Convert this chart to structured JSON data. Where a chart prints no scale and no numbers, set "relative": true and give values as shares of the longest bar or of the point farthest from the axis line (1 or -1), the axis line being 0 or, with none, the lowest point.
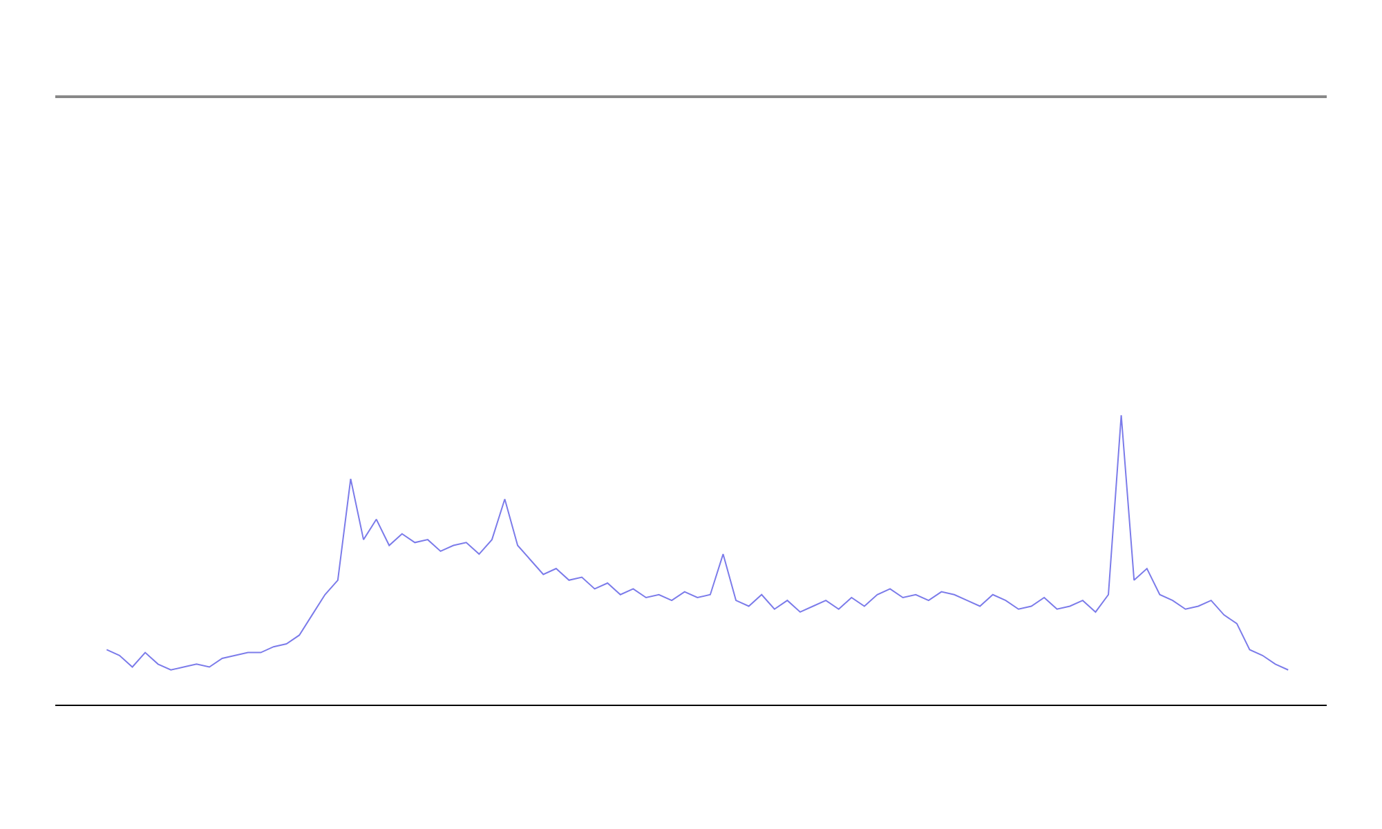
{
  "chart_data": {
    "type": "line",
    "relative": true,
    "legend": false,
    "marker": "none",
    "line_style": "solid",
    "categories": [
      null,
      null,
      null,
      null,
      null,
      null,
      null,
      null,
      null,
      null,
      null,
      null,
      null,
      null,
      null,
      null,
      null,
      null,
      null,
      null,
      null,
      null,
      null,
      null,
      null,
      null,
      null,
      null,
      null,
      null,
      null,
      null,
      null,
      null,
      null,
      null,
      null,
      null,
      null,
      null,
      null,
      null,
      null,
      null,
      null,
      null,
      null,
      null,
      null,
      null,
      null,
      null,
      null,
      null,
      null,
      null,
      null,
      null,
      null,
      null,
      null,
      null,
      null,
      null,
      null,
      null,
      null,
      null,
      null,
      null,
      null,
      null,
      null,
      null,
      null,
      null,
      null,
      null,
      null,
      null,
      null,
      null,
      null,
      null,
      null,
      null,
      null,
      null,
      null,
      null,
      null,
      null,
      null
    ],
    "series": [
      {
        "color": "#7b7bea",
        "values": [
          0.19,
          0.17,
          0.13,
          0.18,
          0.14,
          0.12,
          0.13,
          0.14,
          0.13,
          0.16,
          0.17,
          0.18,
          0.18,
          0.2,
          0.21,
          0.24,
          0.31,
          0.38,
          0.43,
          0.78,
          0.57,
          0.64,
          0.55,
          0.59,
          0.56,
          0.57,
          0.53,
          0.55,
          0.56,
          0.52,
          0.57,
          0.71,
          0.55,
          0.5,
          0.45,
          0.47,
          0.43,
          0.44,
          0.4,
          0.42,
          0.38,
          0.4,
          0.37,
          0.38,
          0.36,
          0.39,
          0.37,
          0.38,
          0.52,
          0.36,
          0.34,
          0.38,
          0.33,
          0.36,
          0.32,
          0.34,
          0.36,
          0.33,
          0.37,
          0.34,
          0.38,
          0.4,
          0.37,
          0.38,
          0.36,
          0.39,
          0.38,
          0.36,
          0.34,
          0.38,
          0.36,
          0.33,
          0.34,
          0.37,
          0.33,
          0.34,
          0.36,
          0.32,
          0.38,
          1,
          0.43,
          0.47,
          0.38,
          0.36,
          0.33,
          0.34,
          0.36,
          0.31,
          0.28,
          0.19,
          0.17,
          0.14,
          0.12
        ]
      }
    ]
  }
}
